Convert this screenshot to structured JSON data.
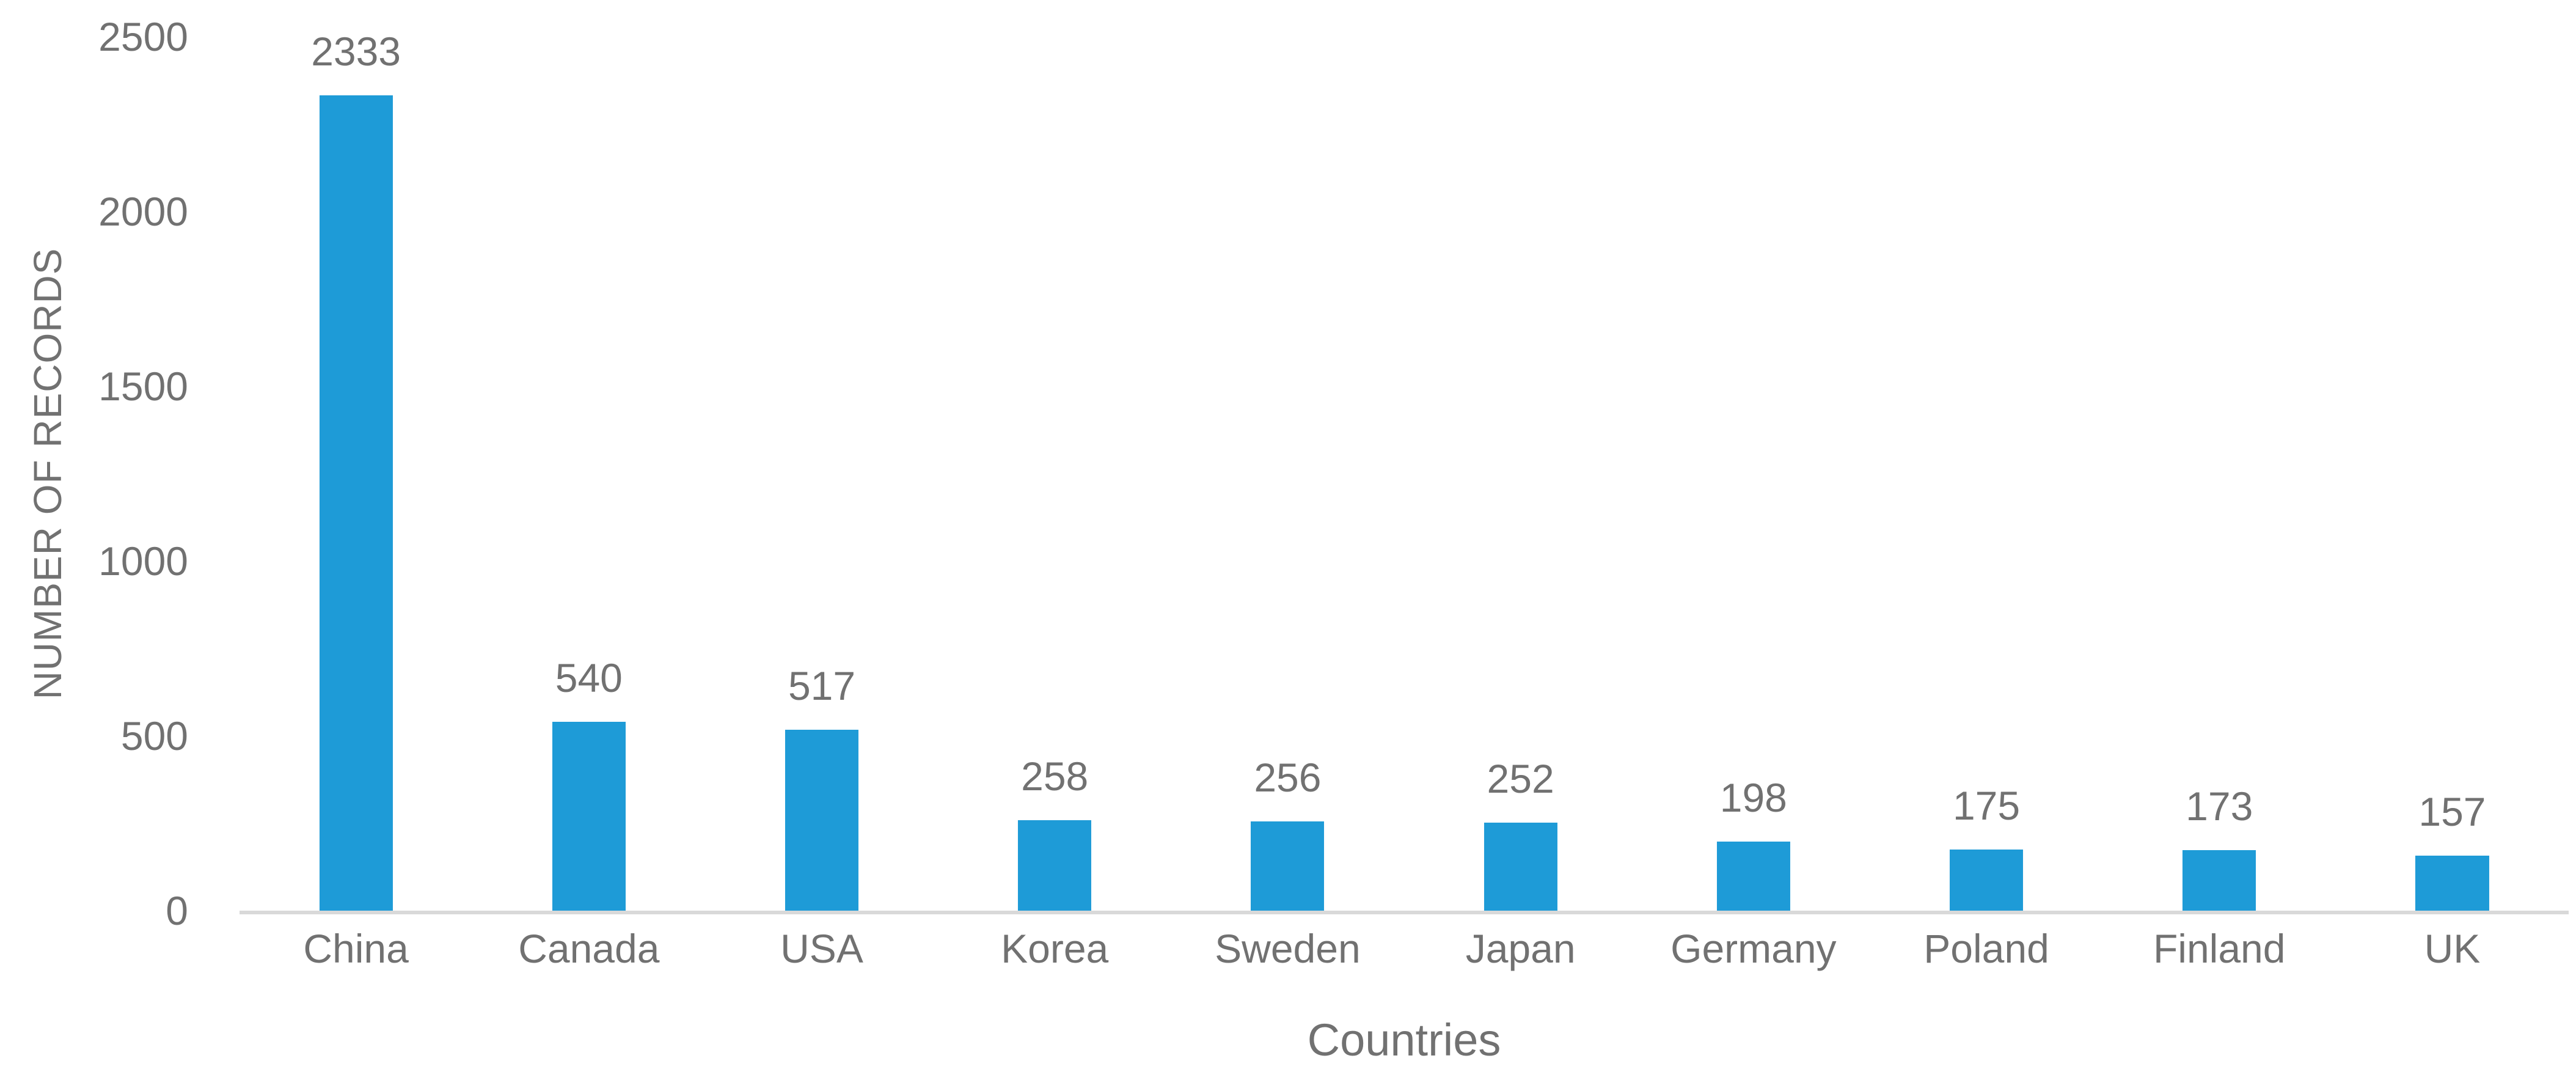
{
  "chart_data": {
    "type": "bar",
    "categories": [
      "China",
      "Canada",
      "USA",
      "Korea",
      "Sweden",
      "Japan",
      "Germany",
      "Poland",
      "Finland",
      "UK"
    ],
    "values": [
      2333,
      540,
      517,
      258,
      256,
      252,
      198,
      175,
      173,
      157
    ],
    "title": "",
    "xlabel": "Countries",
    "ylabel": "NUMBER OF RECORDS",
    "ylim": [
      0,
      2500
    ],
    "yticks": [
      0,
      500,
      1000,
      1500,
      2000,
      2500
    ],
    "data_labels": true,
    "legend": "none",
    "grid": false,
    "colors": {
      "bar": "#1E9BD7",
      "text": "#717171",
      "axis_line": "#D9D9D9"
    }
  }
}
